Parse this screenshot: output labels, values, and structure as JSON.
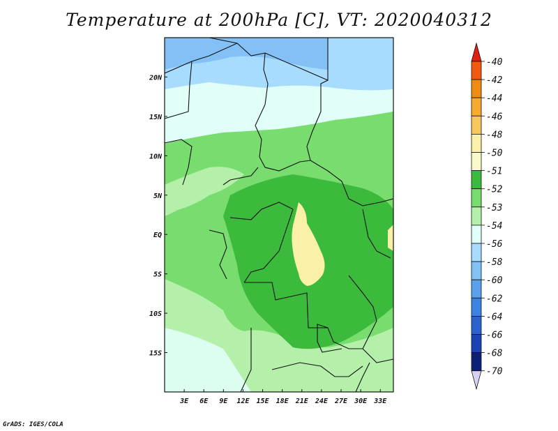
{
  "title": "Temperature at 200hPa [C], VT: 2020040312",
  "credit": "GrADS: IGES/COLA",
  "map": {
    "lon_labels": [
      "3E",
      "6E",
      "9E",
      "12E",
      "15E",
      "18E",
      "21E",
      "24E",
      "27E",
      "30E",
      "33E"
    ],
    "lat_labels": [
      "20N",
      "15N",
      "10N",
      "5N",
      "EQ",
      "5S",
      "10S",
      "15S"
    ],
    "lon_range": [
      0,
      35
    ],
    "lat_range": [
      -20,
      25
    ]
  },
  "colorbar": {
    "levels": [
      "-40",
      "-42",
      "-44",
      "-46",
      "-48",
      "-50",
      "-51",
      "-52",
      "-53",
      "-54",
      "-56",
      "-58",
      "-60",
      "-62",
      "-64",
      "-66",
      "-68",
      "-70"
    ],
    "colors": [
      "#e02010",
      "#f05a10",
      "#f08a10",
      "#f5aa30",
      "#f8c860",
      "#faf0a8",
      "#fafac8",
      "#3cba3c",
      "#78dc6e",
      "#b4f0aa",
      "#e0fff8",
      "#a8dcff",
      "#82c0f5",
      "#5aa0ec",
      "#3c82e0",
      "#2864cc",
      "#1a44b4",
      "#0c2078",
      "#d8d0f0"
    ]
  }
}
